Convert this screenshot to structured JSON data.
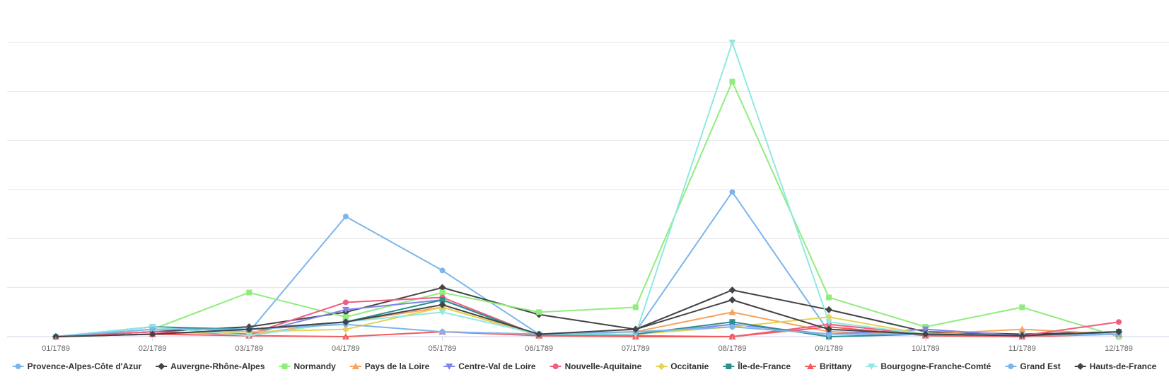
{
  "chart_data": {
    "type": "line",
    "title": "",
    "xlabel": "",
    "ylabel": "",
    "ylim": [
      0,
      6
    ],
    "grid": true,
    "legend_position": "bottom",
    "categories": [
      "01/1789",
      "02/1789",
      "03/1789",
      "04/1789",
      "05/1789",
      "06/1789",
      "07/1789",
      "08/1789",
      "09/1789",
      "10/1789",
      "11/1789",
      "12/1789"
    ],
    "series": [
      {
        "name": "Provence-Alpes-Côte d'Azur",
        "color": "#7cb5ec",
        "marker": "circle",
        "values": [
          0,
          0.2,
          0.1,
          2.45,
          1.35,
          0.05,
          0.1,
          2.95,
          0.1,
          0.05,
          0.05,
          0.05
        ]
      },
      {
        "name": "Auvergne-Rhône-Alpes",
        "color": "#434348",
        "marker": "diamond",
        "values": [
          0,
          0.1,
          0.2,
          0.5,
          1.0,
          0.45,
          0.15,
          0.95,
          0.55,
          0.1,
          0.05,
          0.1
        ]
      },
      {
        "name": "Normandy",
        "color": "#90ed7d",
        "marker": "square",
        "values": [
          0,
          0.15,
          0.9,
          0.4,
          0.9,
          0.5,
          0.6,
          5.2,
          0.8,
          0.2,
          0.6,
          0.0
        ]
      },
      {
        "name": "Pays de la Loire",
        "color": "#f7a35c",
        "marker": "triangle",
        "values": [
          0,
          0.1,
          0.05,
          0.3,
          0.6,
          0.03,
          0.1,
          0.5,
          0.1,
          0.05,
          0.15,
          0.05
        ]
      },
      {
        "name": "Centre-Val de Loire",
        "color": "#8085e9",
        "marker": "triangle-down",
        "values": [
          0,
          0.1,
          0.05,
          0.55,
          0.75,
          0.03,
          0.05,
          0.25,
          0.05,
          0.15,
          0.02,
          0.05
        ]
      },
      {
        "name": "Nouvelle-Aquitaine",
        "color": "#f15c80",
        "marker": "circle",
        "values": [
          0,
          0.1,
          0.05,
          0.7,
          0.8,
          0.02,
          0.02,
          0.0,
          0.25,
          0.05,
          0.02,
          0.3
        ]
      },
      {
        "name": "Occitanie",
        "color": "#e4d354",
        "marker": "diamond",
        "values": [
          0,
          0.05,
          0.1,
          0.15,
          0.6,
          0.02,
          0.05,
          0.2,
          0.4,
          0.05,
          0.02,
          0.05
        ]
      },
      {
        "name": "Île-de-France",
        "color": "#2b908f",
        "marker": "square",
        "values": [
          0,
          0.2,
          0.15,
          0.3,
          0.75,
          0.02,
          0.05,
          0.3,
          0.0,
          0.05,
          0.0,
          0.1
        ]
      },
      {
        "name": "Brittany",
        "color": "#f45b5b",
        "marker": "triangle",
        "values": [
          0,
          0.05,
          0.02,
          0.0,
          0.1,
          0.02,
          0.0,
          0.0,
          0.2,
          0.02,
          0.0,
          0.05
        ]
      },
      {
        "name": "Bourgogne-Franche-Comté",
        "color": "#91e8e1",
        "marker": "triangle-down",
        "values": [
          0,
          0.2,
          0.02,
          0.3,
          0.5,
          0.05,
          0.05,
          6.0,
          0.3,
          0.05,
          0.02,
          0.05
        ]
      },
      {
        "name": "Grand Est",
        "color": "#7cb5ec",
        "marker": "circle",
        "values": [
          0,
          0.15,
          0.15,
          0.25,
          0.1,
          0.05,
          0.1,
          0.2,
          0.05,
          0.05,
          0.02,
          0.05
        ]
      },
      {
        "name": "Hauts-de-France",
        "color": "#434348",
        "marker": "diamond",
        "values": [
          0,
          0.05,
          0.15,
          0.3,
          0.65,
          0.05,
          0.15,
          0.75,
          0.15,
          0.05,
          0.02,
          0.1
        ]
      }
    ]
  }
}
